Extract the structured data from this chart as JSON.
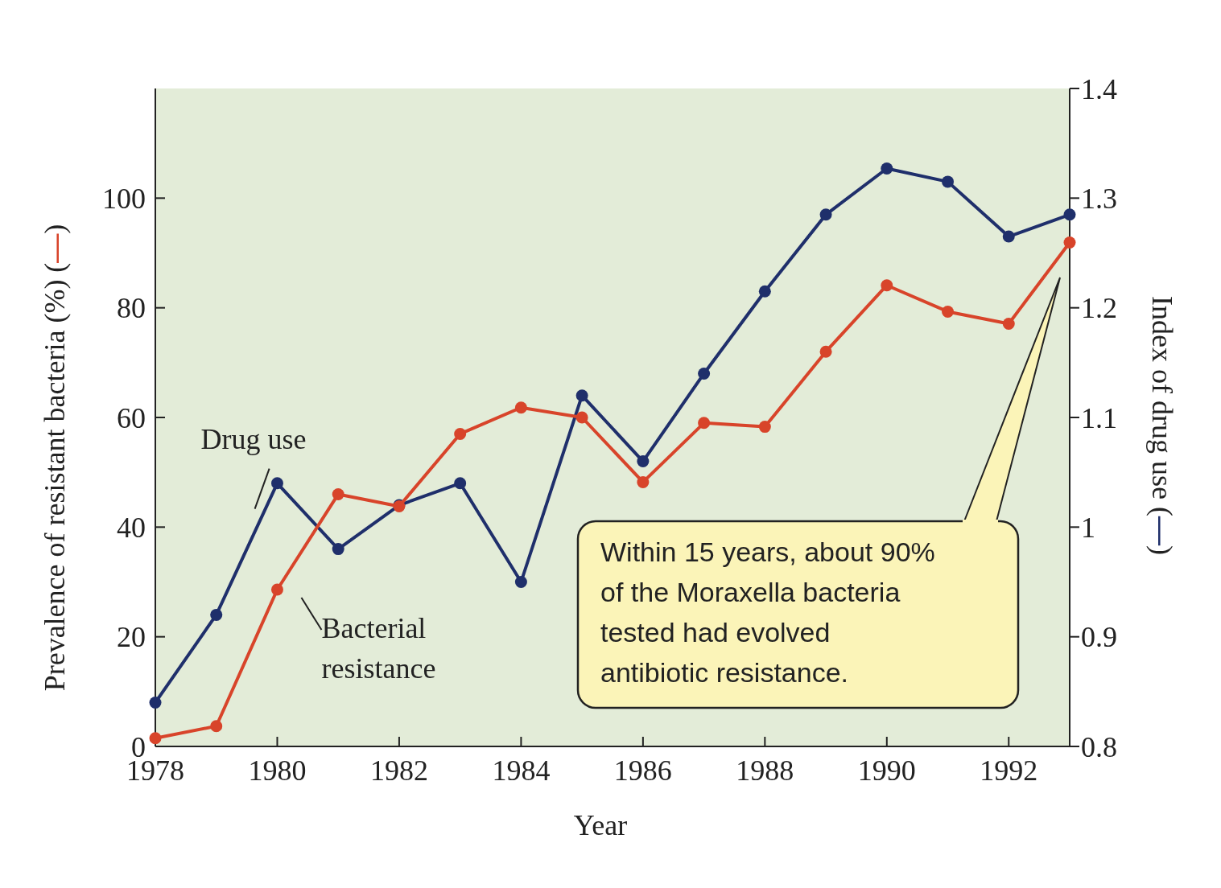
{
  "chart_data": {
    "type": "line",
    "xlabel": "Year",
    "ylabel": "Prevalence of resistant bacteria (%) (—)",
    "y2label": "Index of drug use (—)",
    "x": [
      1978,
      1979,
      1980,
      1981,
      1982,
      1983,
      1984,
      1985,
      1986,
      1987,
      1988,
      1989,
      1990,
      1991,
      1992,
      1993
    ],
    "series": [
      {
        "name": "Drug use",
        "color": "#1f2f6b",
        "axis": "y2",
        "values": [
          0.84,
          0.92,
          1.04,
          0.98,
          1.02,
          1.04,
          0.95,
          1.12,
          1.06,
          1.14,
          1.215,
          1.285,
          1.327,
          1.315,
          1.265,
          1.285
        ]
      },
      {
        "name": "Bacterial resistance",
        "color": "#d8442a",
        "values": [
          1.5,
          3.7,
          28.6,
          46,
          43.8,
          57,
          61.8,
          60,
          48.2,
          59,
          58.3,
          72,
          84.1,
          79.3,
          77.1,
          91.9
        ]
      }
    ],
    "xlim": [
      1978,
      1993
    ],
    "xticks": [
      1978,
      1980,
      1982,
      1984,
      1986,
      1988,
      1990,
      1992
    ],
    "ylim": [
      0,
      120
    ],
    "yticks": [
      0,
      20,
      40,
      60,
      80,
      100
    ],
    "y2lim": [
      0.8,
      1.4
    ],
    "y2ticks": [
      0.8,
      0.9,
      1,
      1.1,
      1.2,
      1.3,
      1.4
    ],
    "marker": "circle",
    "line_style": "solid",
    "grid": false,
    "annotations": [
      "Within 15 years, about 90% of the Moraxella bacteria tested had evolved antibiotic resistance."
    ]
  }
}
